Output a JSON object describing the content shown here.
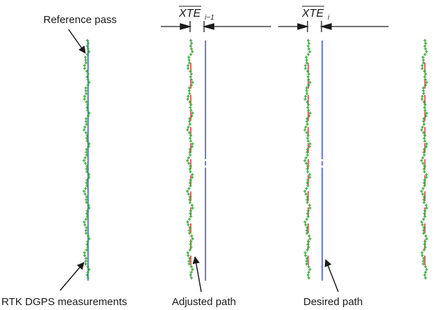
{
  "labels": {
    "reference_pass": "Reference pass",
    "rtk_dgps": "RTK DGPS measurements",
    "adjusted_path": "Adjusted path",
    "desired_path": "Desired path",
    "xte_prev": "XTE",
    "xte_prev_sub": "i−1",
    "xte_curr": "XTE",
    "xte_curr_sub": "i"
  },
  "colors": {
    "measurements": "#3aa83a",
    "adjusted_path": "#e0404a",
    "desired_path": "#3a5fcf",
    "annotation": "#1a1a1a"
  }
}
